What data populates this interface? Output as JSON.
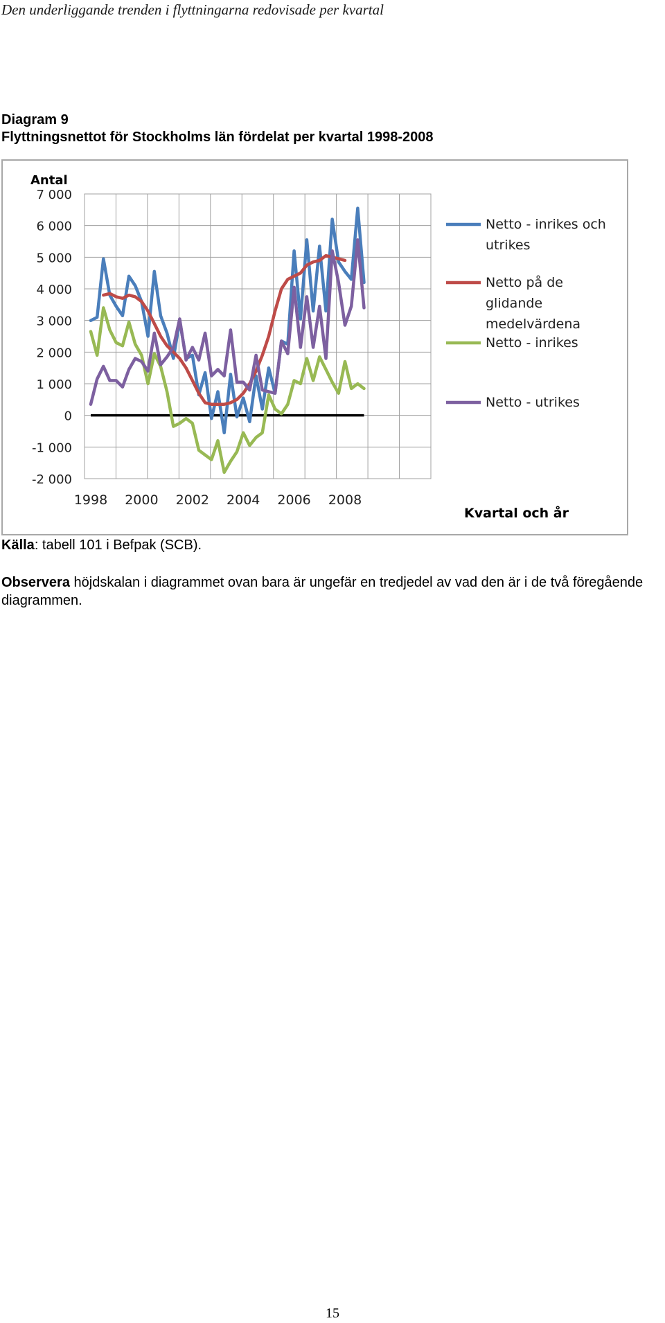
{
  "header": {
    "running_title": "Den underliggande trenden i flyttningarna redovisade per kvartal"
  },
  "figure": {
    "label": "Diagram 9",
    "title": "Flyttningsnettot för Stockholms län fördelat per kvartal 1998-2008"
  },
  "chart_data": {
    "type": "line",
    "ylabel": "Antal",
    "xlabel": "Kvartal och år",
    "ylim": [
      -2000,
      7000
    ],
    "yticks": [
      -2000,
      -1000,
      0,
      1000,
      2000,
      3000,
      4000,
      5000,
      6000,
      7000
    ],
    "ytick_labels": [
      "-2 000",
      "-1 000",
      "0",
      "1 000",
      "2 000",
      "3 000",
      "4 000",
      "5 000",
      "6 000",
      "7 000"
    ],
    "xtick_labels": [
      "1998",
      "2000",
      "2002",
      "2004",
      "2006",
      "2008"
    ],
    "grid": true,
    "legend_position": "right",
    "series": [
      {
        "name": "Netto - inrikes och utrikes",
        "color": "#4a7ebb",
        "values": [
          3000,
          3100,
          4950,
          3800,
          3450,
          3150,
          4400,
          4100,
          3600,
          2500,
          4550,
          3150,
          2600,
          1800,
          3000,
          1800,
          1900,
          650,
          1350,
          -100,
          750,
          -550,
          1300,
          -50,
          550,
          -200,
          1250,
          200,
          1500,
          700,
          2350,
          2250,
          5200,
          3050,
          5550,
          3300,
          5350,
          3300,
          6200,
          4850,
          4550,
          4300,
          6550,
          4200
        ]
      },
      {
        "name": "Netto på de glidande medelvärdena",
        "color": "#be4b48",
        "start_index": 2,
        "values": [
          3800,
          3850,
          3750,
          3700,
          3800,
          3750,
          3600,
          3300,
          2900,
          2500,
          2200,
          2000,
          1800,
          1500,
          1100,
          700,
          400,
          350,
          350,
          350,
          400,
          500,
          700,
          1000,
          1400,
          1900,
          2500,
          3300,
          4000,
          4300,
          4400,
          4500,
          4750,
          4850,
          4900,
          5050,
          5000,
          4950,
          4900
        ]
      },
      {
        "name": "Netto - inrikes",
        "color": "#98b954",
        "values": [
          2650,
          1900,
          3400,
          2700,
          2300,
          2200,
          2950,
          2250,
          1900,
          1000,
          1950,
          1550,
          750,
          -350,
          -250,
          -100,
          -250,
          -1100,
          -1250,
          -1400,
          -800,
          -1800,
          -1450,
          -1150,
          -550,
          -950,
          -700,
          -550,
          650,
          200,
          50,
          350,
          1100,
          1000,
          1800,
          1100,
          1850,
          1450,
          1050,
          700,
          1700,
          850,
          1000,
          850
        ]
      },
      {
        "name": "Netto - utrikes",
        "color": "#7d60a0",
        "values": [
          350,
          1150,
          1550,
          1100,
          1100,
          900,
          1450,
          1800,
          1700,
          1400,
          2600,
          1600,
          1850,
          2150,
          3050,
          1750,
          2150,
          1750,
          2600,
          1250,
          1450,
          1250,
          2700,
          1050,
          1050,
          800,
          1900,
          800,
          750,
          700,
          2350,
          1950,
          4050,
          2150,
          3750,
          2150,
          3450,
          1800,
          5200,
          4200,
          2850,
          3450,
          5550,
          3400
        ]
      }
    ],
    "zero_line_color": "#000000"
  },
  "source": {
    "label": "Källa",
    "text": ": tabell 101 i Befpak (SCB)."
  },
  "note": {
    "emphasis": "Observera",
    "text": " höjdskalan i diagrammet ovan bara är ungefär en tredjedel av vad den är i de två föregående diagrammen."
  },
  "page": {
    "number": "15"
  }
}
